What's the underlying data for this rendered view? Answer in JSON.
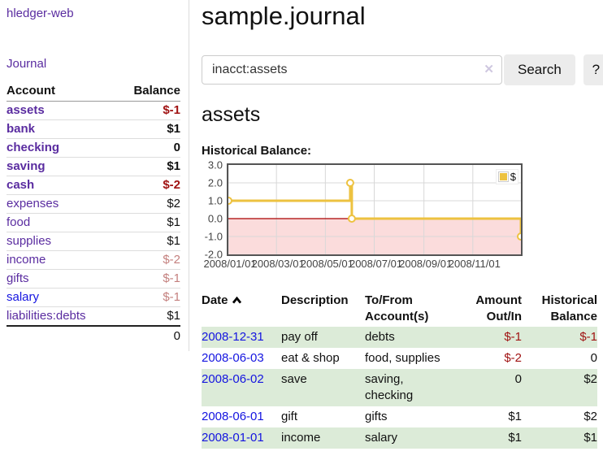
{
  "brand": "hledger-web",
  "sidebar": {
    "journal_link": "Journal",
    "accounts_table": {
      "headers": {
        "account": "Account",
        "balance": "Balance"
      },
      "rows": [
        {
          "name": "assets",
          "depth": 0,
          "balance": "$-1",
          "bold": true
        },
        {
          "name": "bank",
          "depth": 1,
          "balance": "$1",
          "bold": true
        },
        {
          "name": "checking",
          "depth": 2,
          "balance": "0",
          "bold": true
        },
        {
          "name": "saving",
          "depth": 2,
          "balance": "$1",
          "bold": true
        },
        {
          "name": "cash",
          "depth": 1,
          "balance": "$-2",
          "bold": true
        },
        {
          "name": "expenses",
          "depth": 0,
          "balance": "$2",
          "bold": false
        },
        {
          "name": "food",
          "depth": 1,
          "balance": "$1",
          "bold": false
        },
        {
          "name": "supplies",
          "depth": 1,
          "balance": "$1",
          "bold": false
        },
        {
          "name": "income",
          "depth": 0,
          "balance": "$-2",
          "bold": false
        },
        {
          "name": "gifts",
          "depth": 1,
          "balance": "$-1",
          "bold": false
        },
        {
          "name": "salary",
          "depth": 1,
          "balance": "$-1",
          "bold": false,
          "blue": true
        },
        {
          "name": "liabilities:debts",
          "depth": 0,
          "balance": "$1",
          "bold": false
        }
      ],
      "total": "0"
    }
  },
  "header": {
    "title": "sample.journal"
  },
  "search": {
    "value": "inacct:assets",
    "clear_icon": "✕",
    "button_label": "Search",
    "help_label": "?"
  },
  "account_page": {
    "heading": "assets",
    "chart_title": "Historical Balance:"
  },
  "chart_data": {
    "type": "line",
    "title": "Historical Balance",
    "step": true,
    "series": [
      {
        "name": "$",
        "color": "#EDC240",
        "points": [
          [
            "2008-01-01",
            1
          ],
          [
            "2008-06-01",
            2
          ],
          [
            "2008-06-03",
            0
          ],
          [
            "2008-12-31",
            -1
          ]
        ]
      }
    ],
    "x_start": "2008-01-01",
    "x_end": "2008-12-31",
    "ylim": [
      -2,
      3
    ],
    "yticks": [
      "3.0",
      "2.0",
      "1.0",
      "0.0",
      "-1.0",
      "-2.0"
    ],
    "xticks": [
      "2008/01/01",
      "2008/03/01",
      "2008/05/01",
      "2008/07/01",
      "2008/09/01",
      "2008/11/01"
    ],
    "legend": [
      {
        "label": "$",
        "color": "#EDC240"
      }
    ],
    "legend_position": "top-right",
    "grid": true,
    "negative_region_color": "#fbdcdc",
    "zero_line_color": "#aa0000"
  },
  "register_table": {
    "headers": {
      "date": "Date",
      "description": "Description",
      "accounts": "To/From Account(s)",
      "amount": "Amount Out/In",
      "balance": "Historical Balance"
    },
    "sort_icon": "chevron-up",
    "rows": [
      {
        "date": "2008-12-31",
        "description": "pay off",
        "accounts": "debts",
        "amount": "$-1",
        "balance": "$-1"
      },
      {
        "date": "2008-06-03",
        "description": "eat & shop",
        "accounts": "food, supplies",
        "amount": "$-2",
        "balance": "0"
      },
      {
        "date": "2008-06-02",
        "description": "save",
        "accounts": "saving,\nchecking",
        "amount": "0",
        "balance": "$2"
      },
      {
        "date": "2008-06-01",
        "description": "gift",
        "accounts": "gifts",
        "amount": "$1",
        "balance": "$2"
      },
      {
        "date": "2008-01-01",
        "description": "income",
        "accounts": "salary",
        "amount": "$1",
        "balance": "$1"
      }
    ]
  },
  "colors": {
    "link_purple": "#5a2ca0",
    "link_blue": "#1414e0",
    "negative_strong": "#a01313",
    "negative_faded": "#c4807e",
    "row_green": "#dcebd8",
    "series_gold": "#EDC240",
    "negative_area_pink": "#fbdcdc",
    "zero_line_red": "#aa0000"
  }
}
